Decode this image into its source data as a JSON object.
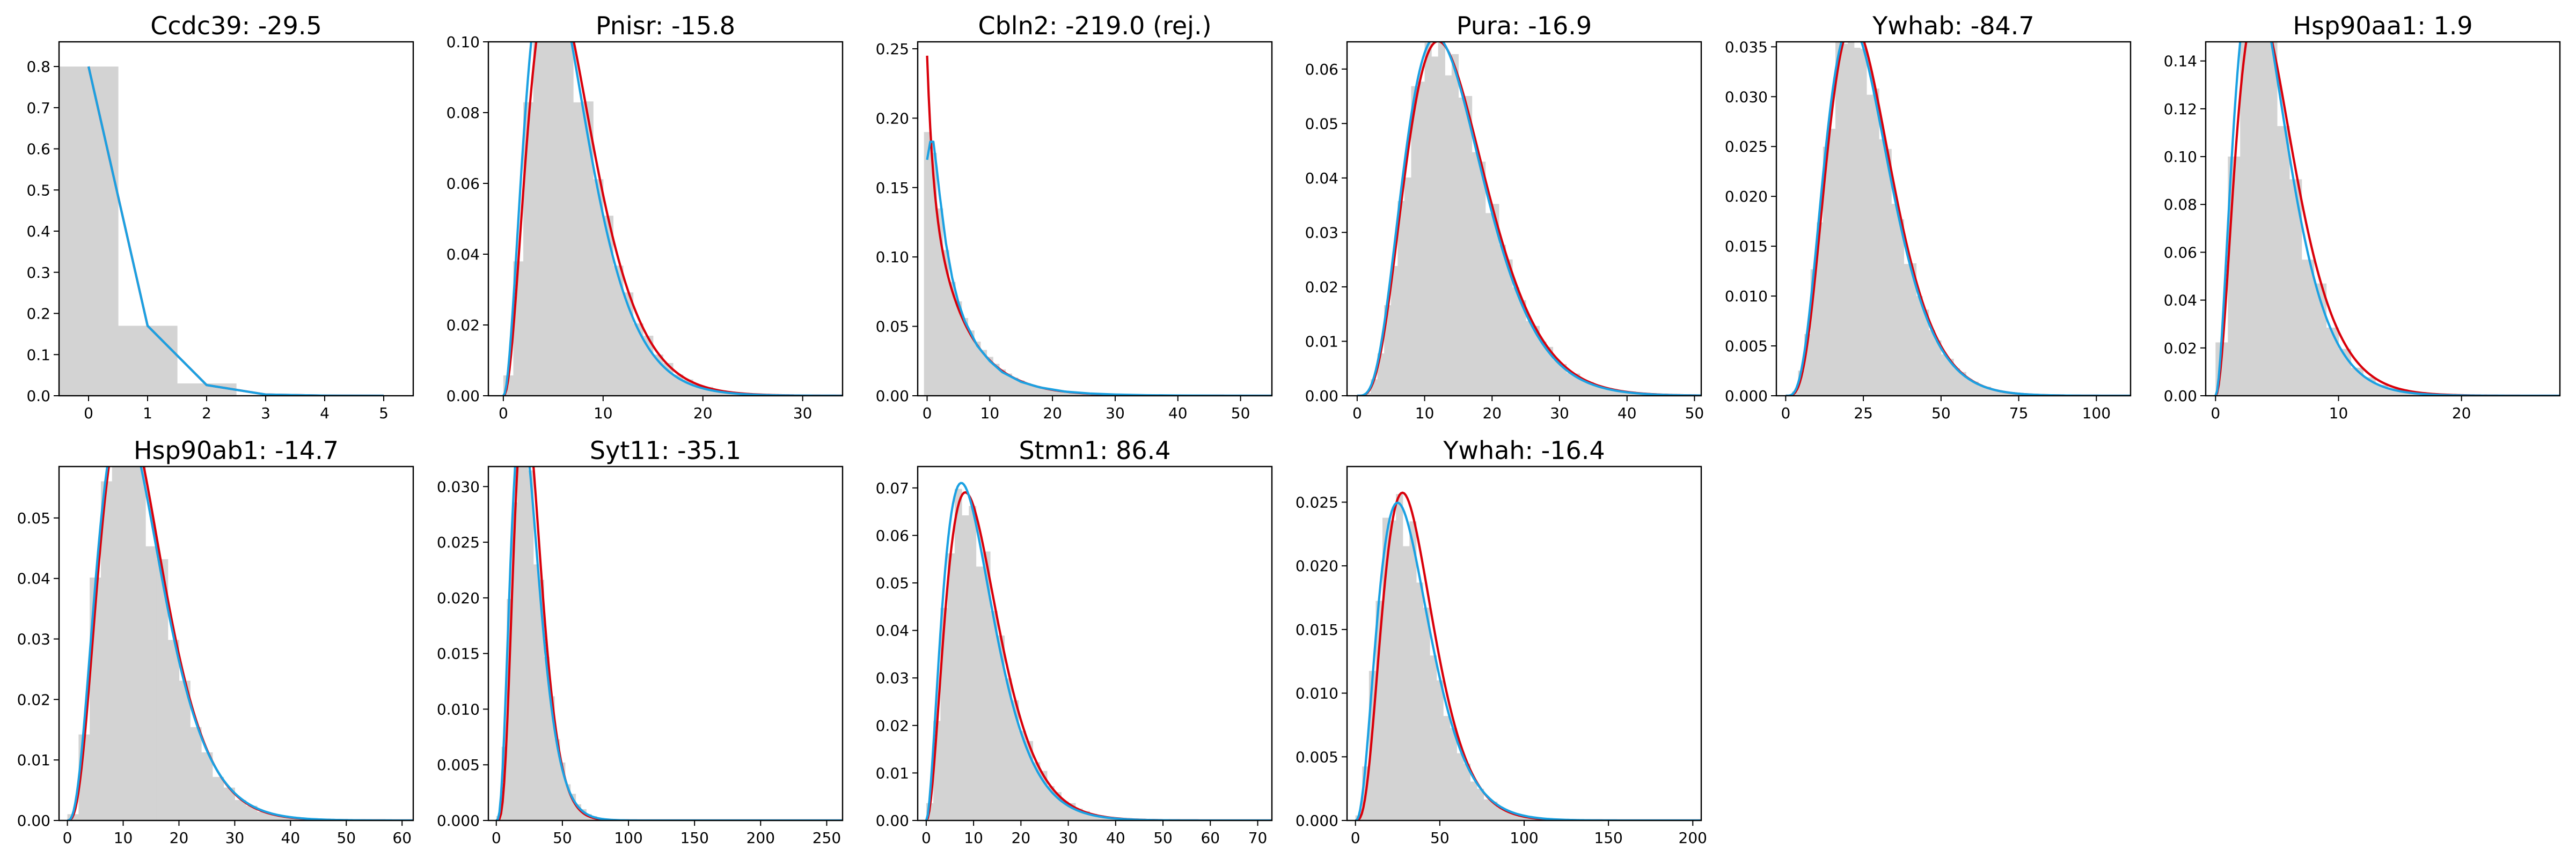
{
  "figure": {
    "colors": {
      "histogram": "#d3d3d3",
      "model_red": "#d9000a",
      "model_blue": "#1ba1e2"
    }
  },
  "chart_data": [
    {
      "type": "histogram",
      "title": "Ccdc39: -29.5",
      "xlim": [
        -0.5,
        5.5
      ],
      "ylim": [
        0,
        0.86
      ],
      "xticks": [
        0,
        1,
        2,
        3,
        4,
        5
      ],
      "yticks": [
        0.0,
        0.1,
        0.2,
        0.3,
        0.4,
        0.5,
        0.6,
        0.7,
        0.8
      ],
      "ytick_labels": [
        "0.0",
        "0.1",
        "0.2",
        "0.3",
        "0.4",
        "0.5",
        "0.6",
        "0.7",
        "0.8"
      ],
      "bins": [
        {
          "x0": -0.5,
          "x1": 0.5,
          "h": 0.8
        },
        {
          "x0": 0.5,
          "x1": 1.5,
          "h": 0.17
        },
        {
          "x0": 1.5,
          "x1": 2.5,
          "h": 0.03
        }
      ],
      "series": [
        {
          "color": "red",
          "x": [
            0,
            1,
            2,
            3,
            4,
            5
          ],
          "y": [
            0.8,
            0.17,
            0.026,
            0.003,
            0.0003,
            0.0
          ]
        },
        {
          "color": "blue",
          "x": [
            0,
            1,
            2,
            3,
            4,
            5
          ],
          "y": [
            0.8,
            0.17,
            0.026,
            0.003,
            0.0003,
            0.0
          ]
        }
      ]
    },
    {
      "type": "histogram",
      "title": "Pnisr: -15.8",
      "xlim": [
        -1.5,
        34
      ],
      "ylim": [
        0,
        0.1
      ],
      "xticks": [
        0,
        10,
        20,
        30
      ],
      "yticks": [
        0.0,
        0.02,
        0.04,
        0.06,
        0.08,
        0.1
      ],
      "ytick_labels": [
        "0.00",
        "0.02",
        "0.04",
        "0.06",
        "0.08",
        "0.10"
      ],
      "hist_dist": {
        "shape": 3.2,
        "scale": 2.2,
        "binwidth": 1,
        "range": [
          0,
          30
        ]
      },
      "series": [
        {
          "color": "red",
          "dist": {
            "shape": 3.3,
            "scale": 2.15,
            "lo": 0,
            "hi": 34
          }
        },
        {
          "color": "blue",
          "dist": {
            "shape": 3.1,
            "scale": 2.15,
            "lo": 0,
            "hi": 34
          }
        }
      ]
    },
    {
      "type": "histogram",
      "title": "Cbln2: -219.0 (rej.)",
      "xlim": [
        -1.5,
        55
      ],
      "ylim": [
        0,
        0.255
      ],
      "xticks": [
        0,
        10,
        20,
        30,
        40,
        50
      ],
      "yticks": [
        0.0,
        0.05,
        0.1,
        0.15,
        0.2,
        0.25
      ],
      "ytick_labels": [
        "0.00",
        "0.05",
        "0.10",
        "0.15",
        "0.20",
        "0.25"
      ],
      "bins": [
        {
          "x0": -0.5,
          "x1": 0.5,
          "h": 0.19
        },
        {
          "x0": 0.5,
          "x1": 1.5,
          "h": 0.175
        },
        {
          "x0": 1.5,
          "x1": 2.5,
          "h": 0.135
        },
        {
          "x0": 2.5,
          "x1": 3.5,
          "h": 0.105
        },
        {
          "x0": 3.5,
          "x1": 4.5,
          "h": 0.082
        },
        {
          "x0": 4.5,
          "x1": 5.5,
          "h": 0.068
        },
        {
          "x0": 5.5,
          "x1": 6.5,
          "h": 0.056
        },
        {
          "x0": 6.5,
          "x1": 7.5,
          "h": 0.047
        },
        {
          "x0": 7.5,
          "x1": 8.5,
          "h": 0.039
        },
        {
          "x0": 8.5,
          "x1": 9.5,
          "h": 0.033
        },
        {
          "x0": 9.5,
          "x1": 10.5,
          "h": 0.028
        },
        {
          "x0": 10.5,
          "x1": 11.5,
          "h": 0.023
        },
        {
          "x0": 11.5,
          "x1": 12.5,
          "h": 0.019
        },
        {
          "x0": 12.5,
          "x1": 13.5,
          "h": 0.016
        },
        {
          "x0": 13.5,
          "x1": 14.5,
          "h": 0.013
        },
        {
          "x0": 14.5,
          "x1": 15.5,
          "h": 0.011
        },
        {
          "x0": 15.5,
          "x1": 16.5,
          "h": 0.009
        },
        {
          "x0": 16.5,
          "x1": 17.5,
          "h": 0.0075
        },
        {
          "x0": 17.5,
          "x1": 18.5,
          "h": 0.006
        },
        {
          "x0": 18.5,
          "x1": 19.5,
          "h": 0.005
        },
        {
          "x0": 19.5,
          "x1": 20.5,
          "h": 0.004
        },
        {
          "x0": 20.5,
          "x1": 22.5,
          "h": 0.003
        },
        {
          "x0": 22.5,
          "x1": 25.5,
          "h": 0.002
        },
        {
          "x0": 25.5,
          "x1": 30.5,
          "h": 0.001
        }
      ],
      "series": [
        {
          "color": "red",
          "dist": {
            "type": "mix",
            "a0": 0.245,
            "amp": 0.16,
            "rate": 0.2,
            "lo": 0,
            "hi": 55
          }
        },
        {
          "color": "blue",
          "x": [
            0,
            0.5,
            1,
            1.5,
            2,
            3,
            4,
            5,
            6,
            8,
            10,
            12,
            15,
            18,
            22,
            26,
            30,
            35,
            40,
            45,
            50,
            55
          ],
          "y": [
            0.17,
            0.183,
            0.183,
            0.165,
            0.145,
            0.11,
            0.085,
            0.067,
            0.054,
            0.036,
            0.025,
            0.017,
            0.01,
            0.006,
            0.003,
            0.0016,
            0.0009,
            0.0004,
            0.0002,
            0.0001,
            5e-05,
            0.0
          ]
        }
      ]
    },
    {
      "type": "histogram",
      "title": "Pura: -16.9",
      "xlim": [
        -1.5,
        51
      ],
      "ylim": [
        0,
        0.065
      ],
      "xticks": [
        0,
        10,
        20,
        30,
        40,
        50
      ],
      "yticks": [
        0.0,
        0.01,
        0.02,
        0.03,
        0.04,
        0.05,
        0.06
      ],
      "ytick_labels": [
        "0.00",
        "0.01",
        "0.02",
        "0.03",
        "0.04",
        "0.05",
        "0.06"
      ],
      "hist_dist": {
        "shape": 5.0,
        "scale": 3.0,
        "binwidth": 1,
        "range": [
          0,
          45
        ]
      },
      "series": [
        {
          "color": "red",
          "dist": {
            "shape": 5.0,
            "scale": 3.0,
            "lo": 0,
            "hi": 51
          }
        },
        {
          "color": "blue",
          "dist": {
            "shape": 4.9,
            "scale": 3.0,
            "lo": 0,
            "hi": 51
          }
        }
      ]
    },
    {
      "type": "histogram",
      "title": "Ywhab: -84.7",
      "xlim": [
        -3,
        111
      ],
      "ylim": [
        0,
        0.0355
      ],
      "xticks": [
        0,
        25,
        50,
        75,
        100
      ],
      "yticks": [
        0.0,
        0.005,
        0.01,
        0.015,
        0.02,
        0.025,
        0.03,
        0.035
      ],
      "ytick_labels": [
        "0.000",
        "0.005",
        "0.010",
        "0.015",
        "0.020",
        "0.025",
        "0.030",
        "0.035"
      ],
      "hist_dist": {
        "shape": 5.0,
        "scale": 5.3,
        "binwidth": 2,
        "range": [
          0,
          90
        ]
      },
      "series": [
        {
          "color": "red",
          "dist": {
            "shape": 5.3,
            "scale": 5.05,
            "lo": 0,
            "hi": 111
          }
        },
        {
          "color": "blue",
          "dist": {
            "shape": 5.0,
            "scale": 5.25,
            "lo": 0,
            "hi": 111
          }
        }
      ]
    },
    {
      "type": "histogram",
      "title": "Hsp90aa1: 1.9",
      "xlim": [
        -0.8,
        28
      ],
      "ylim": [
        0,
        0.148
      ],
      "xticks": [
        0,
        10,
        20
      ],
      "yticks": [
        0.0,
        0.02,
        0.04,
        0.06,
        0.08,
        0.1,
        0.12,
        0.14
      ],
      "ytick_labels": [
        "0.00",
        "0.02",
        "0.04",
        "0.06",
        "0.08",
        "0.10",
        "0.12",
        "0.14"
      ],
      "hist_dist": {
        "shape": 3.0,
        "scale": 1.6,
        "binwidth": 1,
        "range": [
          0,
          22
        ]
      },
      "series": [
        {
          "color": "red",
          "dist": {
            "shape": 3.15,
            "scale": 1.6,
            "lo": 0,
            "hi": 28
          }
        },
        {
          "color": "blue",
          "dist": {
            "shape": 3.0,
            "scale": 1.55,
            "lo": 0,
            "hi": 28
          }
        }
      ]
    },
    {
      "type": "histogram",
      "title": "Hsp90ab1: -14.7",
      "xlim": [
        -1.5,
        62
      ],
      "ylim": [
        0,
        0.0585
      ],
      "xticks": [
        0,
        10,
        20,
        30,
        40,
        50,
        60
      ],
      "yticks": [
        0.0,
        0.01,
        0.02,
        0.03,
        0.04,
        0.05
      ],
      "ytick_labels": [
        "0.00",
        "0.01",
        "0.02",
        "0.03",
        "0.04",
        "0.05"
      ],
      "hist_dist": {
        "shape": 4.0,
        "scale": 3.3,
        "binwidth": 2,
        "range": [
          0,
          50
        ]
      },
      "series": [
        {
          "color": "red",
          "dist": {
            "shape": 4.2,
            "scale": 3.2,
            "lo": 0,
            "hi": 62
          }
        },
        {
          "color": "blue",
          "dist": {
            "shape": 3.9,
            "scale": 3.4,
            "lo": 0,
            "hi": 62
          }
        }
      ]
    },
    {
      "type": "histogram",
      "title": "Syt11: -35.1",
      "xlim": [
        -6,
        262
      ],
      "ylim": [
        0,
        0.0318
      ],
      "xticks": [
        0,
        50,
        100,
        150,
        200,
        250
      ],
      "yticks": [
        0.0,
        0.005,
        0.01,
        0.015,
        0.02,
        0.025,
        0.03
      ],
      "ytick_labels": [
        "0.000",
        "0.005",
        "0.010",
        "0.015",
        "0.020",
        "0.025",
        "0.030"
      ],
      "hist_dist": {
        "shape": 4.2,
        "scale": 6.2,
        "binwidth": 4,
        "range": [
          0,
          120
        ]
      },
      "series": [
        {
          "color": "red",
          "dist": {
            "shape": 5.3,
            "scale": 5.0,
            "lo": 0,
            "hi": 262
          }
        },
        {
          "color": "blue",
          "dist": {
            "shape": 4.2,
            "scale": 6.0,
            "lo": 0,
            "hi": 262
          }
        }
      ]
    },
    {
      "type": "histogram",
      "title": "Stmn1: 86.4",
      "xlim": [
        -1.8,
        73
      ],
      "ylim": [
        0,
        0.0745
      ],
      "xticks": [
        0,
        10,
        20,
        30,
        40,
        50,
        60,
        70
      ],
      "yticks": [
        0.0,
        0.01,
        0.02,
        0.03,
        0.04,
        0.05,
        0.06,
        0.07
      ],
      "ytick_labels": [
        "0.00",
        "0.01",
        "0.02",
        "0.03",
        "0.04",
        "0.05",
        "0.06",
        "0.07"
      ],
      "hist_dist": {
        "shape": 3.0,
        "scale": 4.0,
        "binwidth": 1.5,
        "range": [
          0,
          55
        ]
      },
      "series": [
        {
          "color": "red",
          "dist": {
            "shape": 3.2,
            "scale": 3.75,
            "lo": 0,
            "hi": 73
          }
        },
        {
          "color": "blue",
          "dist": {
            "shape": 2.9,
            "scale": 3.9,
            "lo": 0,
            "hi": 73
          }
        }
      ]
    },
    {
      "type": "histogram",
      "title": "Ywhah: -16.4",
      "xlim": [
        -5,
        205
      ],
      "ylim": [
        0,
        0.0278
      ],
      "xticks": [
        0,
        50,
        100,
        150,
        200
      ],
      "yticks": [
        0.0,
        0.005,
        0.01,
        0.015,
        0.02,
        0.025
      ],
      "ytick_labels": [
        "0.000",
        "0.005",
        "0.010",
        "0.015",
        "0.020",
        "0.025"
      ],
      "hist_dist": {
        "shape": 3.6,
        "scale": 9.5,
        "binwidth": 4,
        "range": [
          0,
          120
        ]
      },
      "series": [
        {
          "color": "red",
          "dist": {
            "shape": 4.4,
            "scale": 8.2,
            "lo": 0,
            "hi": 205
          }
        },
        {
          "color": "blue",
          "dist": {
            "shape": 3.6,
            "scale": 9.6,
            "lo": 0,
            "hi": 205
          }
        }
      ]
    }
  ]
}
